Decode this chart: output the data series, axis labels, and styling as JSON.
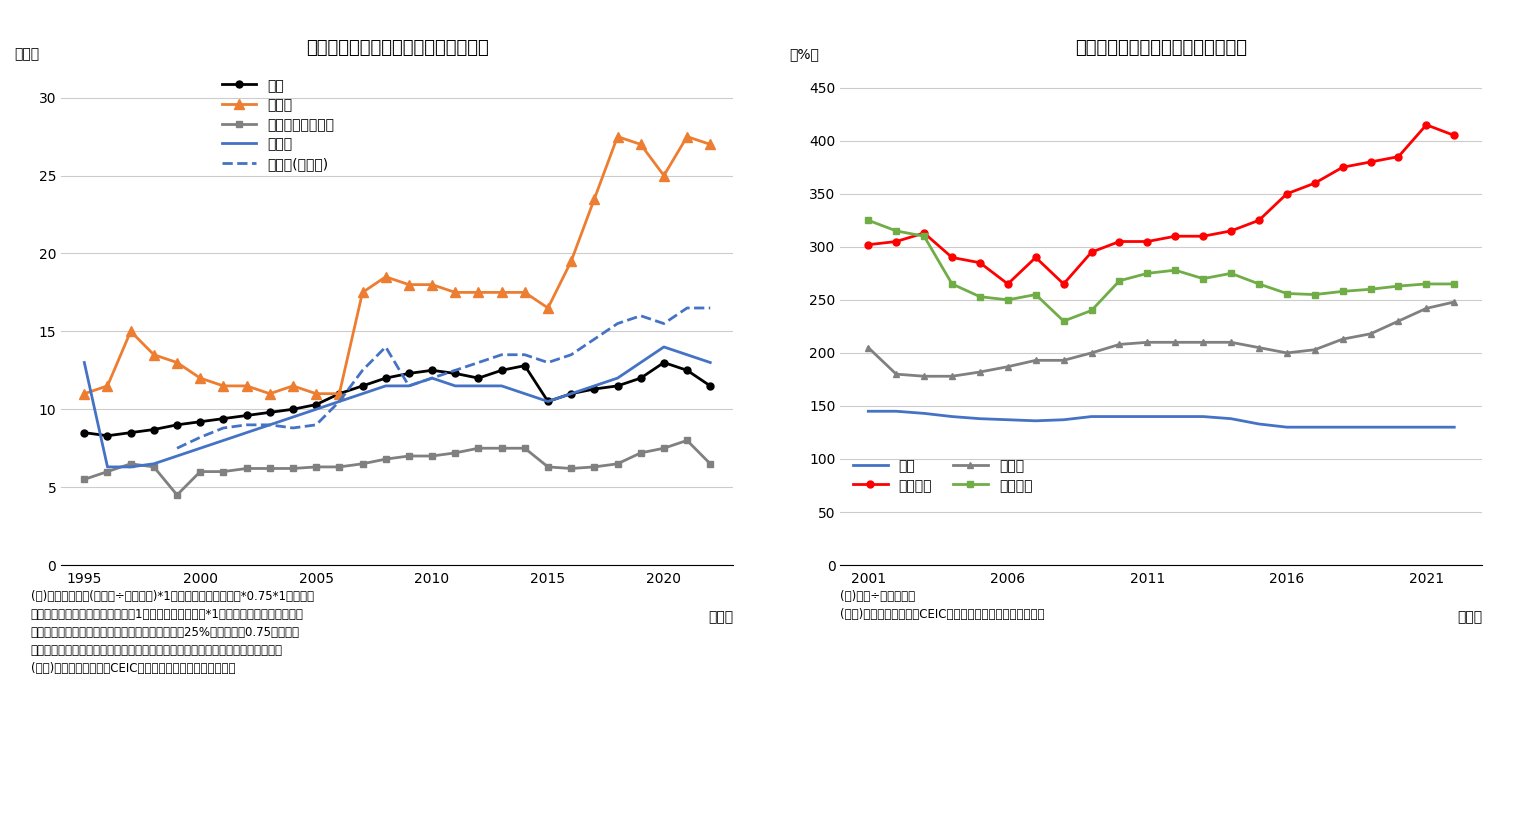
{
  "chart1": {
    "title": "図表２：住宅価格の世帯可処分所得比",
    "ylabel": "（倍）",
    "xlabel": "（年）",
    "ylim": [
      0,
      32
    ],
    "yticks": [
      0,
      5,
      10,
      15,
      20,
      25,
      30
    ],
    "xlim": [
      1994,
      2023
    ],
    "xticks": [
      1995,
      2000,
      2005,
      2010,
      2015,
      2020
    ],
    "series": {
      "全国": {
        "color": "#000000",
        "marker": "o",
        "linestyle": "-",
        "linewidth": 2,
        "markersize": 5,
        "x": [
          1995,
          1996,
          1997,
          1998,
          1999,
          2000,
          2001,
          2002,
          2003,
          2004,
          2005,
          2006,
          2007,
          2008,
          2009,
          2010,
          2011,
          2012,
          2013,
          2014,
          2015,
          2016,
          2017,
          2018,
          2019,
          2020,
          2021,
          2022
        ],
        "y": [
          8.5,
          8.3,
          8.5,
          8.7,
          9.0,
          9.2,
          9.4,
          9.6,
          9.8,
          10.0,
          10.3,
          11.0,
          11.5,
          12.0,
          12.3,
          12.5,
          12.3,
          12.0,
          12.5,
          12.8,
          10.5,
          11.0,
          11.3,
          11.5,
          12.0,
          13.0,
          12.5,
          11.5
        ]
      },
      "北京市": {
        "color": "#ED7D31",
        "marker": "^",
        "linestyle": "-",
        "linewidth": 2,
        "markersize": 7,
        "x": [
          1995,
          1996,
          1997,
          1998,
          1999,
          2000,
          2001,
          2002,
          2003,
          2004,
          2005,
          2006,
          2007,
          2008,
          2009,
          2010,
          2011,
          2012,
          2013,
          2014,
          2015,
          2016,
          2017,
          2018,
          2019,
          2020,
          2021,
          2022
        ],
        "y": [
          11.0,
          11.5,
          15.0,
          13.5,
          13.0,
          12.0,
          11.5,
          11.5,
          11.0,
          11.5,
          11.0,
          11.0,
          17.5,
          18.5,
          18.0,
          18.0,
          17.5,
          17.5,
          17.5,
          17.5,
          16.5,
          19.5,
          23.5,
          27.5,
          27.0,
          25.0,
          27.5,
          27.0
        ]
      },
      "内モンゴル自治区": {
        "color": "#808080",
        "marker": "s",
        "linestyle": "-",
        "linewidth": 2,
        "markersize": 5,
        "x": [
          1995,
          1996,
          1997,
          1998,
          1999,
          2000,
          2001,
          2002,
          2003,
          2004,
          2005,
          2006,
          2007,
          2008,
          2009,
          2010,
          2011,
          2012,
          2013,
          2014,
          2015,
          2016,
          2017,
          2018,
          2019,
          2020,
          2021,
          2022
        ],
        "y": [
          5.5,
          6.0,
          6.5,
          6.3,
          4.5,
          6.0,
          6.0,
          6.2,
          6.2,
          6.2,
          6.3,
          6.3,
          6.5,
          6.8,
          7.0,
          7.0,
          7.2,
          7.5,
          7.5,
          7.5,
          6.3,
          6.2,
          6.3,
          6.5,
          7.2,
          7.5,
          8.0,
          6.5
        ]
      },
      "湖北省": {
        "color": "#4472C4",
        "marker": "",
        "linestyle": "-",
        "linewidth": 2,
        "markersize": 0,
        "x": [
          1995,
          1996,
          1997,
          1998,
          1999,
          2000,
          2001,
          2002,
          2003,
          2004,
          2005,
          2006,
          2007,
          2008,
          2009,
          2010,
          2011,
          2012,
          2013,
          2014,
          2015,
          2016,
          2017,
          2018,
          2019,
          2020,
          2021,
          2022
        ],
        "y": [
          13.0,
          6.3,
          6.3,
          6.5,
          7.0,
          7.5,
          8.0,
          8.5,
          9.0,
          9.5,
          10.0,
          10.5,
          11.0,
          11.5,
          11.5,
          12.0,
          11.5,
          11.5,
          11.5,
          11.0,
          10.5,
          11.0,
          11.5,
          12.0,
          13.0,
          14.0,
          13.5,
          13.0
        ]
      },
      "武漢市(湖北省)": {
        "color": "#4472C4",
        "marker": "",
        "linestyle": "--",
        "linewidth": 2,
        "markersize": 0,
        "x": [
          1999,
          2000,
          2001,
          2002,
          2003,
          2004,
          2005,
          2006,
          2007,
          2008,
          2009,
          2010,
          2011,
          2012,
          2013,
          2014,
          2015,
          2016,
          2017,
          2018,
          2019,
          2020,
          2021,
          2022
        ],
        "y": [
          7.5,
          8.2,
          8.8,
          9.0,
          9.0,
          8.8,
          9.0,
          10.5,
          12.5,
          14.0,
          11.5,
          12.0,
          12.5,
          13.0,
          13.5,
          13.5,
          13.0,
          13.5,
          14.5,
          15.5,
          16.0,
          15.5,
          16.5,
          16.5
        ]
      }
    },
    "note1": "(注)住宅価格は「(販売額÷販売面積)*1人当たり平均建築面積*0.75*1戸当たり",
    "note2": "平均人数」、世帯可処分所得は「1人当たり可処分所得*1戸当たり就業者数」として",
    "note3": "試算。平均建築面積に含まれる共用部分の面積が25%と仮定し、0.75を乗算。",
    "note4": "対象地方や対象年のデータがない場合は、全国データや直近年のデータで代替。",
    "note5": "(資料)中国国家統計局、CEICより、ニッセイ基礎研究所作成"
  },
  "chart2": {
    "title": "図表３：企業の負債比率（業種別）",
    "ylabel": "（%）",
    "xlabel": "（年）",
    "ylim": [
      0,
      470
    ],
    "yticks": [
      0,
      50,
      100,
      150,
      200,
      250,
      300,
      350,
      400,
      450
    ],
    "xlim": [
      2000,
      2023
    ],
    "xticks": [
      2001,
      2006,
      2011,
      2016,
      2021
    ],
    "series": {
      "工業": {
        "color": "#4472C4",
        "marker": "",
        "linestyle": "-",
        "linewidth": 2,
        "markersize": 0,
        "x": [
          2001,
          2002,
          2003,
          2004,
          2005,
          2006,
          2007,
          2008,
          2009,
          2010,
          2011,
          2012,
          2013,
          2014,
          2015,
          2016,
          2017,
          2018,
          2019,
          2020,
          2021,
          2022
        ],
        "y": [
          145,
          145,
          143,
          140,
          138,
          137,
          136,
          137,
          140,
          140,
          140,
          140,
          140,
          138,
          133,
          130,
          130,
          130,
          130,
          130,
          130,
          130
        ]
      },
      "不動産業": {
        "color": "#FF0000",
        "marker": "o",
        "linestyle": "-",
        "linewidth": 2,
        "markersize": 5,
        "x": [
          2001,
          2002,
          2003,
          2004,
          2005,
          2006,
          2007,
          2008,
          2009,
          2010,
          2011,
          2012,
          2013,
          2014,
          2015,
          2016,
          2017,
          2018,
          2019,
          2020,
          2021,
          2022
        ],
        "y": [
          302,
          305,
          313,
          290,
          285,
          265,
          290,
          265,
          295,
          305,
          305,
          310,
          310,
          315,
          325,
          350,
          360,
          375,
          380,
          385,
          415,
          405
        ]
      },
      "建築業": {
        "color": "#808080",
        "marker": "^",
        "linestyle": "-",
        "linewidth": 2,
        "markersize": 5,
        "x": [
          2001,
          2002,
          2003,
          2004,
          2005,
          2006,
          2007,
          2008,
          2009,
          2010,
          2011,
          2012,
          2013,
          2014,
          2015,
          2016,
          2017,
          2018,
          2019,
          2020,
          2021,
          2022
        ],
        "y": [
          205,
          180,
          178,
          178,
          182,
          187,
          193,
          193,
          200,
          208,
          210,
          210,
          210,
          210,
          205,
          200,
          203,
          213,
          218,
          230,
          242,
          248
        ]
      },
      "卸小売業": {
        "color": "#70AD47",
        "marker": "s",
        "linestyle": "-",
        "linewidth": 2,
        "markersize": 5,
        "x": [
          2001,
          2002,
          2003,
          2004,
          2005,
          2006,
          2007,
          2008,
          2009,
          2010,
          2011,
          2012,
          2013,
          2014,
          2015,
          2016,
          2017,
          2018,
          2019,
          2020,
          2021,
          2022
        ],
        "y": [
          325,
          315,
          310,
          265,
          253,
          250,
          255,
          230,
          240,
          268,
          275,
          278,
          270,
          275,
          265,
          256,
          255,
          258,
          260,
          263,
          265,
          265
        ]
      }
    },
    "note1": "(注)負債÷株主資本。",
    "note2": "(資料)中国国家統計局、CEICより、ニッセイ基礎研究所作成"
  },
  "background_color": "#FFFFFF"
}
